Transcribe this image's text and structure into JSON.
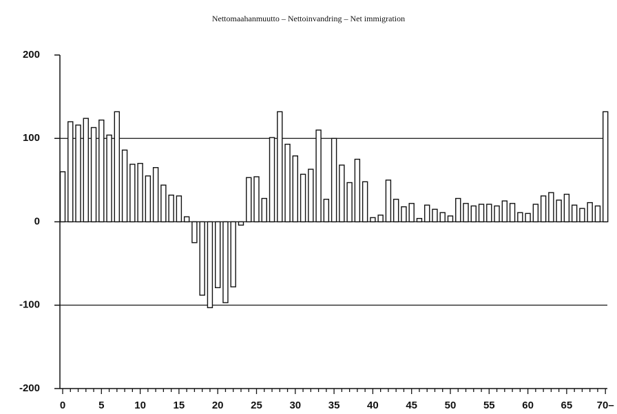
{
  "chart_data": {
    "type": "bar",
    "title": "Nettomaahanmuutto – Nettoinvandring – Net immigration",
    "categories": [
      "0",
      null,
      null,
      null,
      null,
      "5",
      null,
      null,
      null,
      null,
      "10",
      null,
      null,
      null,
      null,
      "15",
      null,
      null,
      null,
      null,
      "20",
      null,
      null,
      null,
      null,
      "25",
      null,
      null,
      null,
      null,
      "30",
      null,
      null,
      null,
      null,
      "35",
      null,
      null,
      null,
      null,
      "40",
      null,
      null,
      null,
      null,
      "45",
      null,
      null,
      null,
      null,
      "50",
      null,
      null,
      null,
      null,
      "55",
      null,
      null,
      null,
      null,
      "60",
      null,
      null,
      null,
      null,
      "65",
      null,
      null,
      null,
      null,
      "70–"
    ],
    "values": [
      60,
      120,
      116,
      124,
      113,
      122,
      104,
      132,
      86,
      69,
      70,
      55,
      65,
      44,
      32,
      31,
      6,
      -25,
      -88,
      -103,
      -79,
      -97,
      -78,
      -4,
      53,
      54,
      28,
      101,
      132,
      93,
      79,
      57,
      63,
      110,
      27,
      100,
      68,
      47,
      75,
      48,
      5,
      8,
      50,
      27,
      18,
      22,
      4,
      20,
      15,
      11,
      7,
      28,
      22,
      19,
      21,
      21,
      19,
      25,
      22,
      11,
      10,
      21,
      31,
      35,
      26,
      33,
      20,
      16,
      23,
      19,
      132
    ],
    "color": "#ffffff",
    "edge_color": "#111111",
    "ylim": [
      -200,
      200
    ],
    "yticks": [
      -200,
      -100,
      0,
      100,
      200
    ],
    "grid": true
  }
}
